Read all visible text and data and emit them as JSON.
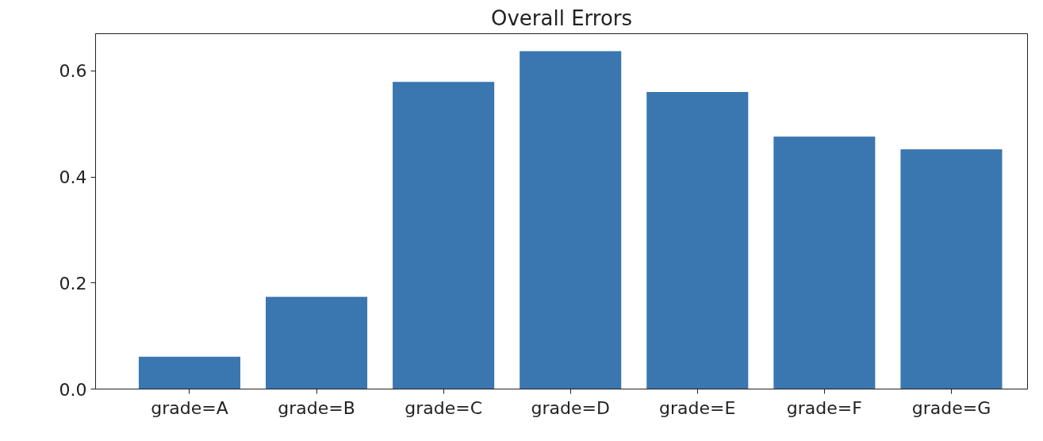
{
  "chart_data": {
    "type": "bar",
    "title": "Overall Errors",
    "categories": [
      "grade=A",
      "grade=B",
      "grade=C",
      "grade=D",
      "grade=E",
      "grade=F",
      "grade=G"
    ],
    "values": [
      0.061,
      0.174,
      0.579,
      0.637,
      0.56,
      0.476,
      0.452
    ],
    "color": "#3a76af",
    "ylim": [
      0,
      0.67
    ],
    "yticks": [
      {
        "value": 0,
        "label": "0.0"
      },
      0.2,
      0.4,
      0.6
    ],
    "grid": false
  }
}
